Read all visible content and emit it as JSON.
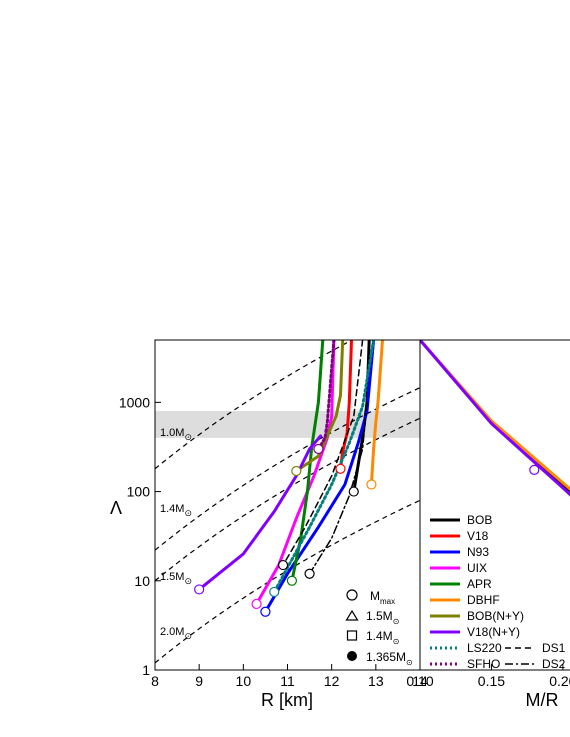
{
  "chart_data": [
    {
      "type": "line",
      "xlabel": "R [km]",
      "ylabel": "Λ",
      "xlim": [
        8,
        14
      ],
      "ylim": [
        1,
        5000
      ],
      "y_scale": "log",
      "x_ticks": [
        "8",
        "9",
        "10",
        "11",
        "12",
        "13",
        "14"
      ],
      "y_ticks": [
        "1",
        "10",
        "100",
        "1000"
      ],
      "band": {
        "y_range": [
          400,
          800
        ]
      },
      "mass_contour_labels": [
        "1.0M",
        "1.4M",
        "1.5M",
        "2.0M"
      ],
      "mass_symbol": "⊙",
      "legend": [
        {
          "symbol": "circle-open",
          "label": "M",
          "sub": "max"
        },
        {
          "symbol": "triangle-open",
          "label": "1.5M",
          "sub": "⊙"
        },
        {
          "symbol": "square-open",
          "label": "1.4M",
          "sub": "⊙"
        },
        {
          "symbol": "circle-filled",
          "label": "1.365M",
          "sub": "⊙"
        }
      ],
      "series": [
        {
          "name": "BOB",
          "color": "#000000",
          "style": "solid",
          "width": 3,
          "x": [
            12.85,
            12.8,
            12.7,
            12.6,
            12.5
          ],
          "y": [
            5000,
            1000,
            400,
            200,
            100
          ]
        },
        {
          "name": "V18",
          "color": "#ff0000",
          "style": "solid",
          "width": 3,
          "x": [
            12.45,
            12.4,
            12.35,
            12.25,
            12.2
          ],
          "y": [
            5000,
            1000,
            450,
            280,
            180
          ]
        },
        {
          "name": "N93",
          "color": "#0000ff",
          "style": "solid",
          "width": 3,
          "x": [
            12.95,
            12.8,
            12.6,
            12.3,
            11.7,
            11.0,
            10.5
          ],
          "y": [
            5000,
            800,
            350,
            120,
            40,
            12,
            4.5
          ]
        },
        {
          "name": "UIX",
          "color": "#ff00ff",
          "style": "solid",
          "width": 3,
          "x": [
            12.05,
            12.0,
            11.9,
            11.6,
            11.2,
            10.8,
            10.3
          ],
          "y": [
            5000,
            700,
            400,
            150,
            50,
            15,
            5.5
          ]
        },
        {
          "name": "APR",
          "color": "#008000",
          "style": "solid",
          "width": 3,
          "x": [
            11.8,
            11.7,
            11.55,
            11.45,
            11.3,
            11.1
          ],
          "y": [
            5000,
            1000,
            320,
            100,
            30,
            10
          ]
        },
        {
          "name": "DBHF",
          "color": "#ff8800",
          "style": "solid",
          "width": 3,
          "x": [
            13.15,
            13.05,
            13.0,
            12.95,
            12.9
          ],
          "y": [
            5000,
            1000,
            600,
            300,
            120
          ]
        },
        {
          "name": "BOB(N+Y)",
          "color": "#808000",
          "style": "solid",
          "width": 3,
          "x": [
            12.25,
            12.2,
            12.1,
            11.7,
            11.2
          ],
          "y": [
            5000,
            1200,
            700,
            250,
            170
          ]
        },
        {
          "name": "V18(N+Y)",
          "color": "#8000ff",
          "style": "solid",
          "width": 3,
          "x": [
            11.75,
            11.5,
            11.2,
            10.7,
            10.0,
            9.0
          ],
          "y": [
            420,
            300,
            150,
            60,
            20,
            8
          ]
        },
        {
          "name": "LS220",
          "color": "#008080",
          "style": "dotted",
          "width": 3,
          "x": [
            12.95,
            12.7,
            12.4,
            12.0,
            11.5,
            10.7
          ],
          "y": [
            5000,
            900,
            350,
            120,
            40,
            7.5
          ]
        },
        {
          "name": "SFHO",
          "color": "#800080",
          "style": "dotted",
          "width": 3,
          "x": [
            12.05,
            11.95,
            11.9,
            11.85,
            11.7
          ],
          "y": [
            5000,
            1200,
            600,
            400,
            300
          ]
        },
        {
          "name": "DS1",
          "color": "#000000",
          "style": "dashed",
          "width": 1.5,
          "x": [
            12.7,
            12.5,
            12.0,
            11.4,
            10.9
          ],
          "y": [
            5000,
            700,
            150,
            40,
            15
          ]
        },
        {
          "name": "DS2",
          "color": "#000000",
          "style": "dashdot",
          "width": 1.5,
          "x": [
            12.8,
            12.7,
            12.4,
            12.0,
            11.5
          ],
          "y": [
            1000,
            300,
            90,
            30,
            12
          ]
        }
      ]
    },
    {
      "type": "line",
      "xlabel": "M/R",
      "xlim": [
        0.1,
        0.24
      ],
      "ylim": [
        1,
        5000
      ],
      "y_scale": "log",
      "x_ticks": [
        "0.10",
        "0.15",
        "0.20"
      ],
      "marker": {
        "x": 0.18,
        "y": 175,
        "symbol": "circle-open",
        "color": "#8000ff"
      },
      "legend": [
        {
          "label": "BOB",
          "color": "#000000",
          "style": "solid"
        },
        {
          "label": "V18",
          "color": "#ff0000",
          "style": "solid"
        },
        {
          "label": "N93",
          "color": "#0000ff",
          "style": "solid"
        },
        {
          "label": "UIX",
          "color": "#ff00ff",
          "style": "solid"
        },
        {
          "label": "APR",
          "color": "#008000",
          "style": "solid"
        },
        {
          "label": "DBHF",
          "color": "#ff8800",
          "style": "solid"
        },
        {
          "label": "BOB(N+Y)",
          "color": "#808000",
          "style": "solid"
        },
        {
          "label": "V18(N+Y)",
          "color": "#8000ff",
          "style": "solid"
        },
        {
          "label": "LS220",
          "color": "#008080",
          "style": "dotted"
        },
        {
          "label": "DS1",
          "color": "#000000",
          "style": "dashed"
        },
        {
          "label": "SFHO",
          "color": "#800080",
          "style": "dotted"
        },
        {
          "label": "DS2",
          "color": "#000000",
          "style": "dashdot"
        }
      ],
      "series": [
        {
          "name": "BOB",
          "color": "#000000",
          "x": [
            0.1,
            0.15,
            0.2,
            0.24
          ],
          "y": [
            5000,
            600,
            120,
            35
          ]
        },
        {
          "name": "DBHF",
          "color": "#ff8800",
          "x": [
            0.1,
            0.15,
            0.2,
            0.24
          ],
          "y": [
            5000,
            620,
            125,
            36
          ]
        },
        {
          "name": "V18(N+Y)",
          "color": "#8000ff",
          "x": [
            0.1,
            0.15,
            0.2,
            0.24
          ],
          "y": [
            5000,
            580,
            110,
            28
          ]
        }
      ]
    }
  ]
}
